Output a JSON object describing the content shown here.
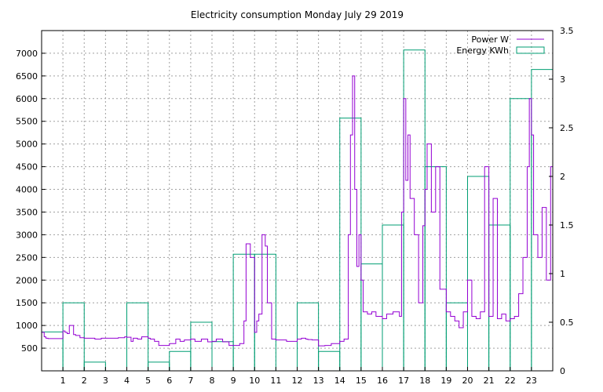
{
  "chart_data": {
    "type": "line",
    "title": "Electricity consumption Monday July 29 2019",
    "xlabel": "",
    "ylabel": "",
    "y2label": "",
    "grid": true,
    "legend_placement": "top-right",
    "x_range": [
      0,
      24
    ],
    "y_range": [
      0,
      7500
    ],
    "y2_range": [
      0,
      3.5
    ],
    "x_ticks": [
      1,
      2,
      3,
      4,
      5,
      6,
      7,
      8,
      9,
      10,
      11,
      12,
      13,
      14,
      15,
      16,
      17,
      18,
      19,
      20,
      21,
      22,
      23
    ],
    "x_tick_labels": [
      "1",
      "2",
      "3",
      "4",
      "5",
      "6",
      "7",
      "8",
      "9",
      "10",
      "11",
      "12",
      "13",
      "14",
      "15",
      "16",
      "17",
      "18",
      "19",
      "20",
      "21",
      "22",
      "23"
    ],
    "y_ticks": [
      500,
      1000,
      1500,
      2000,
      2500,
      3000,
      3500,
      4000,
      4500,
      5000,
      5500,
      6000,
      6500,
      7000
    ],
    "y_tick_labels": [
      "500",
      "1000",
      "1500",
      "2000",
      "2500",
      "3000",
      "3500",
      "4000",
      "4500",
      "5000",
      "5500",
      "6000",
      "6500",
      "7000"
    ],
    "y2_ticks": [
      0,
      0.5,
      1,
      1.5,
      2,
      2.5,
      3,
      3.5
    ],
    "y2_tick_labels": [
      "0",
      "0.5",
      "1",
      "1.5",
      "2",
      "2.5",
      "3",
      "3.5"
    ],
    "colors": {
      "power": "#9400d3",
      "energy": "#009e73",
      "grid": "#a0a0a0"
    },
    "series": [
      {
        "name": "Power W",
        "axis": "y",
        "style": "step-line",
        "x": [
          0,
          0.12,
          0.2,
          0.3,
          1.0,
          1.1,
          1.2,
          1.3,
          1.5,
          1.6,
          1.8,
          2.0,
          2.2,
          2.5,
          2.8,
          3.0,
          3.3,
          3.6,
          3.9,
          4.0,
          4.2,
          4.3,
          4.5,
          4.7,
          5.0,
          5.1,
          5.3,
          5.5,
          5.8,
          6.0,
          6.3,
          6.5,
          6.7,
          7.0,
          7.2,
          7.5,
          7.8,
          8.0,
          8.2,
          8.5,
          8.8,
          9.0,
          9.3,
          9.5,
          9.6,
          9.8,
          10.0,
          10.1,
          10.2,
          10.35,
          10.5,
          10.6,
          10.8,
          11.0,
          11.5,
          12.0,
          12.2,
          12.4,
          12.5,
          12.7,
          13.0,
          13.3,
          13.6,
          14.0,
          14.2,
          14.4,
          14.5,
          14.6,
          14.7,
          14.8,
          14.9,
          15.0,
          15.1,
          15.3,
          15.5,
          15.7,
          16.0,
          16.2,
          16.5,
          16.8,
          16.9,
          17.0,
          17.1,
          17.2,
          17.3,
          17.5,
          17.7,
          17.9,
          18.0,
          18.1,
          18.3,
          18.5,
          18.7,
          19.0,
          19.2,
          19.4,
          19.6,
          19.8,
          20.0,
          20.2,
          20.4,
          20.6,
          20.8,
          21.0,
          21.2,
          21.4,
          21.6,
          21.8,
          22.0,
          22.2,
          22.4,
          22.6,
          22.8,
          22.9,
          23.0,
          23.1,
          23.3,
          23.5,
          23.7,
          23.9,
          24.0
        ],
        "values": [
          850,
          750,
          720,
          710,
          880,
          850,
          820,
          1000,
          800,
          780,
          730,
          720,
          720,
          700,
          720,
          720,
          720,
          730,
          750,
          740,
          650,
          720,
          700,
          750,
          720,
          700,
          650,
          560,
          560,
          600,
          700,
          650,
          680,
          700,
          650,
          700,
          640,
          650,
          700,
          640,
          560,
          560,
          600,
          1100,
          2800,
          2500,
          850,
          1100,
          1250,
          3000,
          2750,
          1500,
          700,
          680,
          650,
          700,
          720,
          700,
          690,
          680,
          550,
          560,
          600,
          650,
          700,
          3000,
          5200,
          6500,
          4000,
          2300,
          3000,
          2000,
          1300,
          1250,
          1300,
          1200,
          1150,
          1250,
          1300,
          1200,
          3500,
          6000,
          4200,
          5200,
          3800,
          3000,
          1500,
          3200,
          4000,
          5000,
          3500,
          4500,
          1800,
          1300,
          1200,
          1100,
          950,
          1300,
          2000,
          1200,
          1150,
          1300,
          4500,
          1200,
          3800,
          1150,
          1250,
          1100,
          1150,
          1200,
          1700,
          2500,
          4500,
          6000,
          5200,
          3000,
          2500,
          3600,
          2000,
          4500,
          1500
        ]
      },
      {
        "name": "Energy KWh",
        "axis": "y2",
        "style": "histogram-steps",
        "x": [
          0,
          1,
          2,
          3,
          4,
          5,
          6,
          7,
          8,
          9,
          10,
          11,
          12,
          13,
          14,
          15,
          16,
          17,
          18,
          19,
          20,
          21,
          22,
          23
        ],
        "values": [
          0.4,
          0.7,
          0.09,
          0.0,
          0.7,
          0.09,
          0.2,
          0.5,
          0.3,
          1.2,
          1.2,
          0.0,
          0.7,
          0.2,
          2.6,
          1.1,
          1.5,
          3.3,
          2.1,
          0.7,
          2.0,
          1.5,
          2.8,
          3.1
        ]
      }
    ]
  }
}
